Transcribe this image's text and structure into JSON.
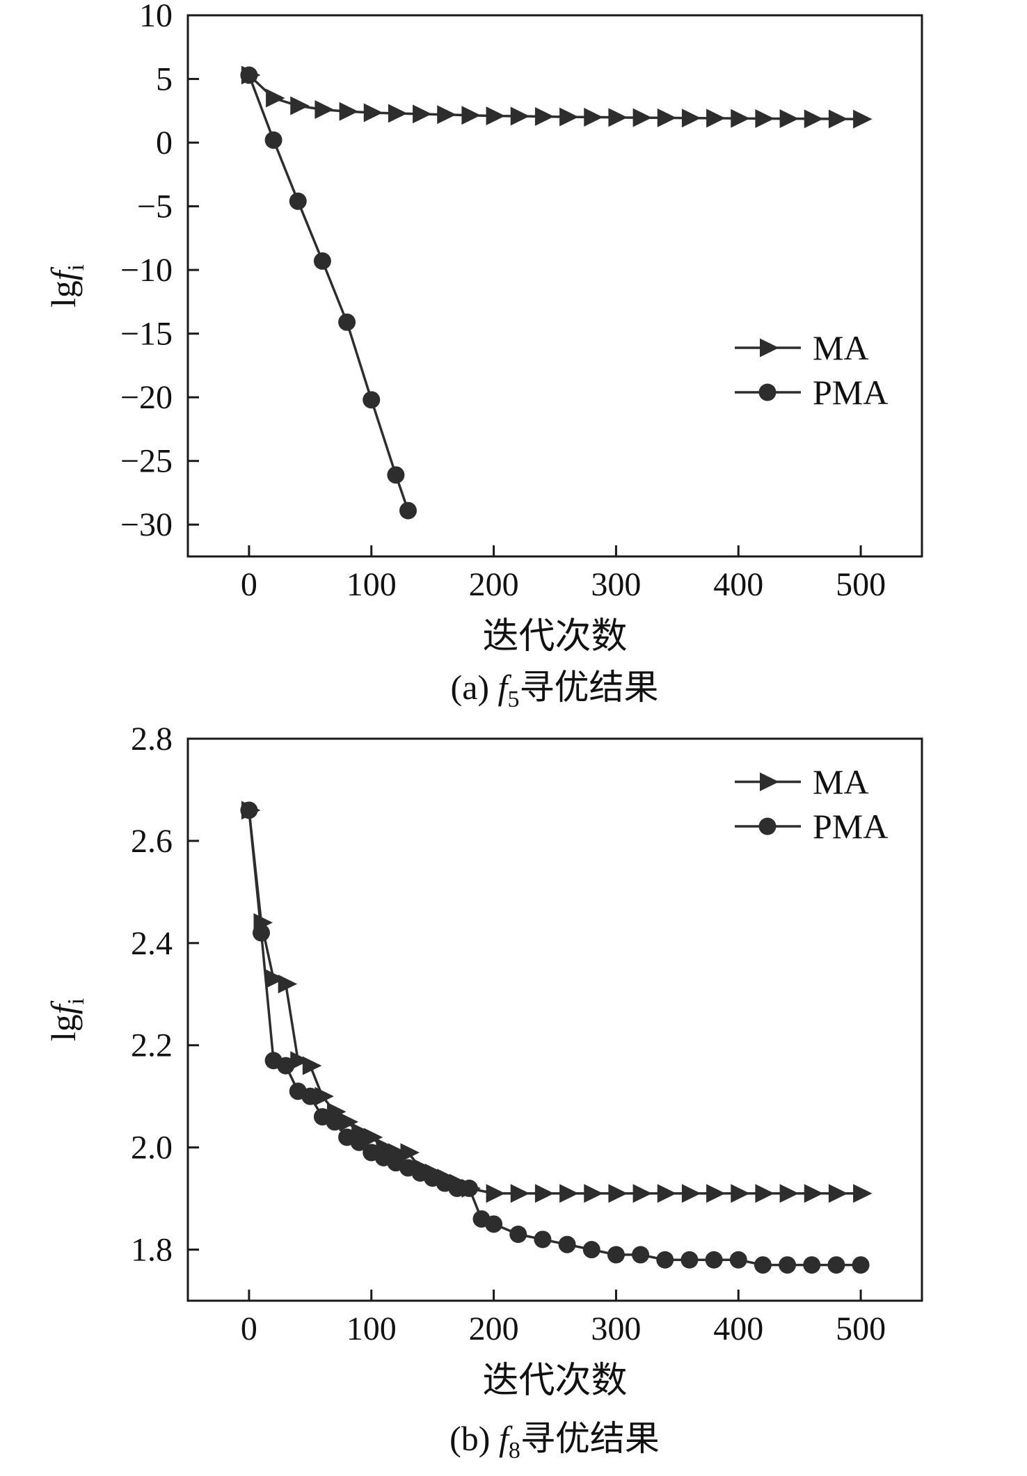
{
  "colors": {
    "line": "#2d2d2d",
    "axis": "#1a1a1a",
    "text": "#111111"
  },
  "chart_data": [
    {
      "type": "line",
      "title": "",
      "xlabel": "迭代次数",
      "ylabel_parts": {
        "prefix": "lg",
        "italic": "f",
        "sub": "i"
      },
      "caption_parts": {
        "prefix": "(a) ",
        "italic": "f",
        "sub": "5",
        "suffix": "寻优结果"
      },
      "xlim": [
        -50,
        550
      ],
      "ylim": [
        -32.5,
        10
      ],
      "xticks": [
        0,
        100,
        200,
        300,
        400,
        500
      ],
      "yticks": [
        10,
        5,
        0,
        -5,
        -10,
        -15,
        -20,
        -25,
        -30
      ],
      "tick_decimals": {
        "x": 0,
        "y": 0
      },
      "legend": {
        "position": "bottom-right",
        "entries": [
          {
            "label": "MA",
            "marker": "triangle-right"
          },
          {
            "label": "PMA",
            "marker": "circle"
          }
        ]
      },
      "series": [
        {
          "name": "MA",
          "marker": "triangle-right",
          "x": [
            0,
            20,
            40,
            60,
            80,
            100,
            120,
            140,
            160,
            180,
            200,
            220,
            240,
            260,
            280,
            300,
            320,
            340,
            360,
            380,
            400,
            420,
            440,
            460,
            480,
            500
          ],
          "y": [
            5.3,
            3.5,
            2.9,
            2.6,
            2.45,
            2.35,
            2.3,
            2.25,
            2.2,
            2.15,
            2.1,
            2.08,
            2.05,
            2.02,
            2.0,
            1.98,
            1.96,
            1.95,
            1.93,
            1.92,
            1.9,
            1.89,
            1.88,
            1.87,
            1.86,
            1.85
          ]
        },
        {
          "name": "PMA",
          "marker": "circle",
          "x": [
            0,
            20,
            40,
            60,
            80,
            100,
            120,
            130
          ],
          "y": [
            5.3,
            0.2,
            -4.6,
            -9.3,
            -14.1,
            -20.2,
            -26.1,
            -28.9
          ]
        }
      ]
    },
    {
      "type": "line",
      "title": "",
      "xlabel": "迭代次数",
      "ylabel_parts": {
        "prefix": "lg",
        "italic": "f",
        "sub": "i"
      },
      "caption_parts": {
        "prefix": "(b) ",
        "italic": "f",
        "sub": "8",
        "suffix": "寻优结果"
      },
      "xlim": [
        -50,
        550
      ],
      "ylim": [
        1.7,
        2.8
      ],
      "xticks": [
        0,
        100,
        200,
        300,
        400,
        500
      ],
      "yticks": [
        2.8,
        2.6,
        2.4,
        2.2,
        2.0,
        1.8
      ],
      "tick_decimals": {
        "x": 0,
        "y": 1
      },
      "legend": {
        "position": "top-right",
        "entries": [
          {
            "label": "MA",
            "marker": "triangle-right"
          },
          {
            "label": "PMA",
            "marker": "circle"
          }
        ]
      },
      "series": [
        {
          "name": "MA",
          "marker": "triangle-right",
          "x": [
            0,
            10,
            20,
            30,
            40,
            50,
            60,
            70,
            80,
            90,
            100,
            110,
            120,
            130,
            140,
            150,
            160,
            170,
            180,
            200,
            220,
            240,
            260,
            280,
            300,
            320,
            340,
            360,
            380,
            400,
            420,
            440,
            460,
            480,
            500
          ],
          "y": [
            2.66,
            2.44,
            2.33,
            2.32,
            2.17,
            2.16,
            2.1,
            2.07,
            2.05,
            2.03,
            2.02,
            2.0,
            1.99,
            1.99,
            1.96,
            1.95,
            1.94,
            1.93,
            1.92,
            1.91,
            1.91,
            1.91,
            1.91,
            1.91,
            1.91,
            1.91,
            1.91,
            1.91,
            1.91,
            1.91,
            1.91,
            1.91,
            1.91,
            1.91,
            1.91
          ]
        },
        {
          "name": "PMA",
          "marker": "circle",
          "x": [
            0,
            10,
            20,
            30,
            40,
            50,
            60,
            70,
            80,
            90,
            100,
            110,
            120,
            130,
            140,
            150,
            160,
            170,
            180,
            190,
            200,
            220,
            240,
            260,
            280,
            300,
            320,
            340,
            360,
            380,
            400,
            420,
            440,
            460,
            480,
            500
          ],
          "y": [
            2.66,
            2.42,
            2.17,
            2.16,
            2.11,
            2.1,
            2.06,
            2.05,
            2.02,
            2.01,
            1.99,
            1.98,
            1.97,
            1.96,
            1.95,
            1.94,
            1.93,
            1.92,
            1.92,
            1.86,
            1.85,
            1.83,
            1.82,
            1.81,
            1.8,
            1.79,
            1.79,
            1.78,
            1.78,
            1.78,
            1.78,
            1.77,
            1.77,
            1.77,
            1.77,
            1.77
          ]
        }
      ]
    }
  ]
}
